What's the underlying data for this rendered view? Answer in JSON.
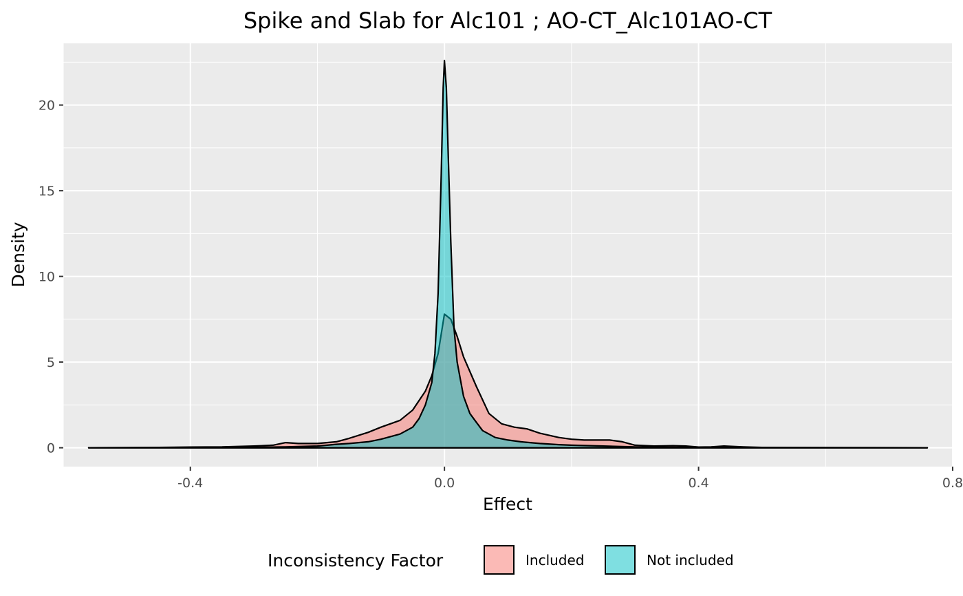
{
  "chart_data": {
    "type": "area",
    "title": "Spike and Slab for Alc101 ; AO-CT_Alc101AO-CT",
    "xlabel": "Effect",
    "ylabel": "Density",
    "xlim": [
      -0.6,
      0.8
    ],
    "ylim": [
      -1.1,
      23.6
    ],
    "x_ticks": [
      -0.4,
      0.0,
      0.4,
      0.8
    ],
    "x_tick_labels": [
      "-0.4",
      "0.0",
      "0.4",
      "0.8"
    ],
    "y_ticks": [
      0,
      5,
      10,
      15,
      20
    ],
    "y_tick_labels": [
      "0",
      "5",
      "10",
      "15",
      "20"
    ],
    "grid": true,
    "legend_position": "bottom",
    "legend_title": "Inconsistency Factor",
    "series": [
      {
        "name": "Included",
        "color": "#F8766D",
        "points": [
          [
            -0.56,
            0
          ],
          [
            -0.45,
            0.02
          ],
          [
            -0.4,
            0.04
          ],
          [
            -0.35,
            0.05
          ],
          [
            -0.3,
            0.1
          ],
          [
            -0.27,
            0.15
          ],
          [
            -0.25,
            0.3
          ],
          [
            -0.23,
            0.25
          ],
          [
            -0.2,
            0.25
          ],
          [
            -0.17,
            0.35
          ],
          [
            -0.15,
            0.55
          ],
          [
            -0.12,
            0.9
          ],
          [
            -0.1,
            1.2
          ],
          [
            -0.07,
            1.6
          ],
          [
            -0.05,
            2.2
          ],
          [
            -0.03,
            3.3
          ],
          [
            -0.02,
            4.2
          ],
          [
            -0.01,
            5.5
          ],
          [
            0.0,
            7.8
          ],
          [
            0.01,
            7.5
          ],
          [
            0.02,
            6.5
          ],
          [
            0.03,
            5.3
          ],
          [
            0.05,
            3.6
          ],
          [
            0.07,
            2.0
          ],
          [
            0.09,
            1.4
          ],
          [
            0.11,
            1.2
          ],
          [
            0.13,
            1.1
          ],
          [
            0.15,
            0.85
          ],
          [
            0.18,
            0.6
          ],
          [
            0.2,
            0.5
          ],
          [
            0.22,
            0.45
          ],
          [
            0.24,
            0.45
          ],
          [
            0.26,
            0.45
          ],
          [
            0.28,
            0.35
          ],
          [
            0.3,
            0.15
          ],
          [
            0.33,
            0.1
          ],
          [
            0.36,
            0.12
          ],
          [
            0.38,
            0.1
          ],
          [
            0.4,
            0.04
          ],
          [
            0.42,
            0.05
          ],
          [
            0.44,
            0.1
          ],
          [
            0.47,
            0.05
          ],
          [
            0.5,
            0.02
          ],
          [
            0.6,
            0.01
          ],
          [
            0.76,
            0
          ]
        ]
      },
      {
        "name": "Not included",
        "color": "#00BFC4",
        "points": [
          [
            -0.56,
            0
          ],
          [
            -0.4,
            0.01
          ],
          [
            -0.3,
            0.03
          ],
          [
            -0.25,
            0.05
          ],
          [
            -0.2,
            0.1
          ],
          [
            -0.17,
            0.2
          ],
          [
            -0.15,
            0.25
          ],
          [
            -0.12,
            0.35
          ],
          [
            -0.1,
            0.5
          ],
          [
            -0.07,
            0.8
          ],
          [
            -0.05,
            1.2
          ],
          [
            -0.04,
            1.7
          ],
          [
            -0.03,
            2.5
          ],
          [
            -0.02,
            3.8
          ],
          [
            -0.015,
            5.5
          ],
          [
            -0.01,
            9.0
          ],
          [
            -0.005,
            16.0
          ],
          [
            -0.002,
            21.0
          ],
          [
            0.0,
            22.6
          ],
          [
            0.003,
            21.0
          ],
          [
            0.006,
            17.0
          ],
          [
            0.01,
            12.0
          ],
          [
            0.015,
            7.0
          ],
          [
            0.02,
            5.0
          ],
          [
            0.03,
            3.0
          ],
          [
            0.04,
            2.0
          ],
          [
            0.05,
            1.5
          ],
          [
            0.06,
            1.0
          ],
          [
            0.07,
            0.8
          ],
          [
            0.08,
            0.6
          ],
          [
            0.1,
            0.45
          ],
          [
            0.12,
            0.35
          ],
          [
            0.15,
            0.25
          ],
          [
            0.18,
            0.18
          ],
          [
            0.2,
            0.15
          ],
          [
            0.25,
            0.1
          ],
          [
            0.3,
            0.05
          ],
          [
            0.35,
            0.03
          ],
          [
            0.4,
            0.02
          ],
          [
            0.5,
            0.01
          ],
          [
            0.76,
            0
          ]
        ]
      }
    ]
  }
}
